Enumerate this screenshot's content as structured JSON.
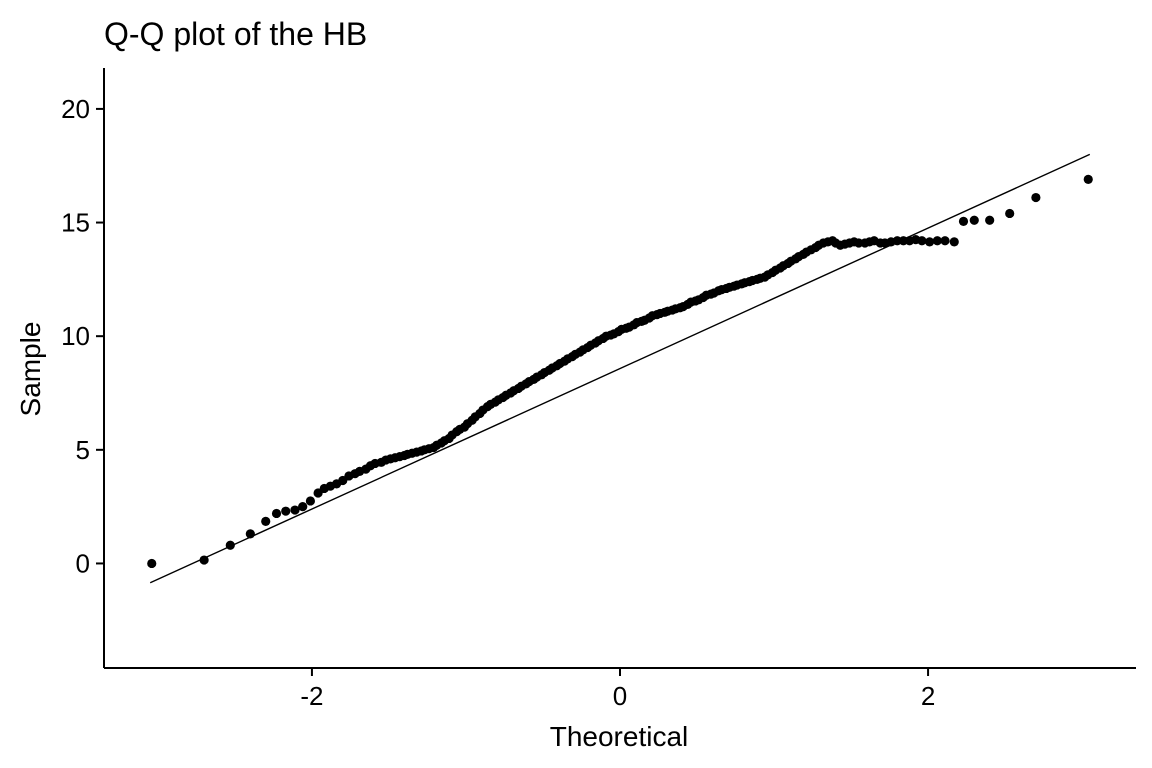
{
  "chart_data": {
    "type": "scatter",
    "title": "Q-Q plot of the HB",
    "xlabel": "Theoretical",
    "ylabel": "Sample",
    "xlim": [
      -3.35,
      3.35
    ],
    "ylim": [
      -4.6,
      21.8
    ],
    "x_ticks": [
      -2,
      0,
      2
    ],
    "y_ticks": [
      0,
      5,
      10,
      15,
      20
    ],
    "x_tick_labels": [
      "-2",
      "0",
      "2"
    ],
    "y_tick_labels": [
      "0",
      "5",
      "10",
      "15",
      "20"
    ],
    "grid": false,
    "legend": "none",
    "reference_line": {
      "x": [
        -3.05,
        3.05
      ],
      "y": [
        -0.85,
        18.0
      ]
    },
    "points": {
      "x": [
        -3.04,
        -2.7,
        -2.53,
        -2.4,
        -2.3,
        -2.23,
        -2.17,
        -2.11,
        -2.06,
        -2.01,
        -1.96,
        -1.92,
        -1.88,
        -1.84,
        -1.8,
        -1.76,
        -1.72,
        -1.69,
        -1.65,
        -1.62,
        -1.59,
        -1.55,
        -1.52,
        -1.49,
        -1.46,
        -1.43,
        -1.4,
        -1.38,
        -1.35,
        -1.32,
        -1.29,
        -1.27,
        -1.24,
        -1.21,
        -1.19,
        -1.16,
        -1.14,
        -1.11,
        -1.09,
        -1.06,
        -1.04,
        -1.01,
        -0.99,
        -0.96,
        -0.94,
        -0.91,
        -0.89,
        -0.86,
        -0.84,
        -0.81,
        -0.79,
        -0.76,
        -0.74,
        -0.71,
        -0.69,
        -0.66,
        -0.64,
        -0.61,
        -0.59,
        -0.56,
        -0.54,
        -0.51,
        -0.49,
        -0.46,
        -0.44,
        -0.41,
        -0.39,
        -0.36,
        -0.34,
        -0.31,
        -0.29,
        -0.26,
        -0.24,
        -0.21,
        -0.19,
        -0.16,
        -0.14,
        -0.11,
        -0.09,
        -0.06,
        -0.04,
        -0.01,
        0.01,
        0.04,
        0.06,
        0.09,
        0.11,
        0.14,
        0.16,
        0.19,
        0.21,
        0.24,
        0.26,
        0.29,
        0.31,
        0.34,
        0.36,
        0.39,
        0.41,
        0.44,
        0.46,
        0.49,
        0.51,
        0.54,
        0.56,
        0.59,
        0.61,
        0.64,
        0.66,
        0.69,
        0.71,
        0.74,
        0.76,
        0.79,
        0.81,
        0.84,
        0.86,
        0.89,
        0.91,
        0.94,
        0.96,
        0.99,
        1.01,
        1.04,
        1.06,
        1.09,
        1.11,
        1.14,
        1.16,
        1.19,
        1.21,
        1.24,
        1.27,
        1.29,
        1.32,
        1.35,
        1.38,
        1.4,
        1.43,
        1.46,
        1.49,
        1.52,
        1.55,
        1.59,
        1.62,
        1.65,
        1.69,
        1.72,
        1.76,
        1.8,
        1.84,
        1.88,
        1.92,
        1.96,
        2.01,
        2.06,
        2.11,
        2.17,
        2.23,
        2.3,
        2.4,
        2.53,
        2.7,
        3.04
      ],
      "y": [
        0.0,
        0.15,
        0.8,
        1.3,
        1.85,
        2.2,
        2.3,
        2.35,
        2.5,
        2.75,
        3.1,
        3.3,
        3.4,
        3.5,
        3.65,
        3.85,
        3.95,
        4.05,
        4.15,
        4.3,
        4.4,
        4.45,
        4.55,
        4.6,
        4.65,
        4.7,
        4.75,
        4.8,
        4.85,
        4.9,
        4.95,
        5.0,
        5.05,
        5.1,
        5.2,
        5.3,
        5.4,
        5.5,
        5.65,
        5.8,
        5.9,
        6.0,
        6.15,
        6.3,
        6.45,
        6.6,
        6.75,
        6.9,
        7.0,
        7.1,
        7.2,
        7.3,
        7.4,
        7.5,
        7.6,
        7.7,
        7.8,
        7.9,
        8.0,
        8.1,
        8.2,
        8.3,
        8.4,
        8.5,
        8.6,
        8.7,
        8.8,
        8.9,
        9.0,
        9.1,
        9.2,
        9.3,
        9.4,
        9.5,
        9.6,
        9.7,
        9.8,
        9.9,
        10.0,
        10.05,
        10.1,
        10.2,
        10.3,
        10.35,
        10.4,
        10.5,
        10.6,
        10.65,
        10.7,
        10.8,
        10.9,
        10.95,
        11.0,
        11.05,
        11.1,
        11.15,
        11.2,
        11.25,
        11.3,
        11.4,
        11.5,
        11.55,
        11.6,
        11.7,
        11.8,
        11.85,
        11.9,
        12.0,
        12.05,
        12.1,
        12.15,
        12.2,
        12.25,
        12.3,
        12.35,
        12.4,
        12.45,
        12.5,
        12.55,
        12.6,
        12.7,
        12.8,
        12.9,
        13.0,
        13.1,
        13.2,
        13.3,
        13.4,
        13.5,
        13.6,
        13.7,
        13.8,
        13.9,
        14.0,
        14.1,
        14.15,
        14.2,
        14.1,
        14.0,
        14.05,
        14.1,
        14.15,
        14.1,
        14.1,
        14.15,
        14.2,
        14.1,
        14.1,
        14.15,
        14.2,
        14.2,
        14.2,
        14.25,
        14.2,
        14.15,
        14.2,
        14.2,
        14.15,
        15.05,
        15.1,
        15.1,
        15.4,
        16.1,
        16.9
      ]
    }
  }
}
